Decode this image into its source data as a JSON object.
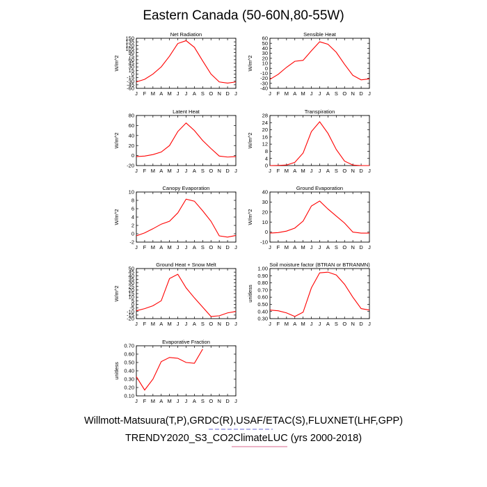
{
  "title": "Eastern Canada (50-60N,80-55W)",
  "footer": {
    "line1": "Willmott-Matsuura(T,P),GRDC(R),USAF/ETAC(S),FLUXNET(LHF,GPP)",
    "line2": "TRENDY2020_S3_CO2ClimateLUC (yrs 2000-2018)"
  },
  "colors": {
    "series": "#ff0000",
    "axis": "#000000",
    "underline_line1": "#3333cc",
    "underline_line2": "#cc3366"
  },
  "chart_data": [
    {
      "type": "line",
      "title": "Net Radiation",
      "ylabel": "W/m^2",
      "x": [
        "J",
        "F",
        "M",
        "A",
        "M",
        "J",
        "J",
        "A",
        "S",
        "O",
        "N",
        "D",
        "J"
      ],
      "ylim": [
        -60,
        150
      ],
      "yticks": [
        -60,
        -45,
        -30,
        -15,
        0,
        15,
        30,
        45,
        60,
        75,
        90,
        105,
        120,
        135,
        150
      ],
      "values": [
        -33,
        -22,
        0,
        30,
        75,
        128,
        140,
        112,
        55,
        0,
        -33,
        -38,
        -33
      ]
    },
    {
      "type": "line",
      "title": "Sensible Heat",
      "ylabel": "W/m^2",
      "x": [
        "J",
        "F",
        "M",
        "A",
        "M",
        "J",
        "J",
        "A",
        "S",
        "O",
        "N",
        "D",
        "J"
      ],
      "ylim": [
        -40,
        60
      ],
      "yticks": [
        -40,
        -30,
        -20,
        -10,
        0,
        10,
        20,
        30,
        40,
        50,
        60
      ],
      "values": [
        -22,
        -12,
        2,
        14,
        16,
        35,
        53,
        48,
        32,
        8,
        -14,
        -23,
        -21
      ]
    },
    {
      "type": "line",
      "title": "Latent Heat",
      "ylabel": "W/m^2",
      "x": [
        "J",
        "F",
        "M",
        "A",
        "M",
        "J",
        "J",
        "A",
        "S",
        "O",
        "N",
        "D",
        "J"
      ],
      "ylim": [
        -20,
        80
      ],
      "yticks": [
        -20,
        0,
        20,
        40,
        60,
        80
      ],
      "values": [
        -2,
        -1,
        2,
        7,
        20,
        48,
        65,
        50,
        30,
        14,
        -1,
        -3,
        -2
      ]
    },
    {
      "type": "line",
      "title": "Transpiration",
      "ylabel": "W/m^2",
      "x": [
        "J",
        "F",
        "M",
        "A",
        "M",
        "J",
        "J",
        "A",
        "S",
        "O",
        "N",
        "D",
        "J"
      ],
      "ylim": [
        0,
        28
      ],
      "yticks": [
        0,
        4,
        8,
        12,
        16,
        20,
        24,
        28
      ],
      "values": [
        0,
        0.1,
        0.3,
        1.8,
        7,
        19,
        24.5,
        18,
        9,
        2.5,
        0.3,
        0,
        0
      ]
    },
    {
      "type": "line",
      "title": "Canopy Evaporation",
      "ylabel": "W/m^2",
      "x": [
        "J",
        "F",
        "M",
        "A",
        "M",
        "J",
        "J",
        "A",
        "S",
        "O",
        "N",
        "D",
        "J"
      ],
      "ylim": [
        -2,
        10
      ],
      "yticks": [
        -2,
        0,
        2,
        4,
        6,
        8,
        10
      ],
      "values": [
        -0.5,
        0.2,
        1.2,
        2.3,
        3.0,
        5.0,
        8.3,
        7.8,
        5.5,
        3.0,
        -0.5,
        -0.8,
        -0.4
      ]
    },
    {
      "type": "line",
      "title": "Ground Evaporation",
      "ylabel": "W/m^2",
      "x": [
        "J",
        "F",
        "M",
        "A",
        "M",
        "J",
        "J",
        "A",
        "S",
        "O",
        "N",
        "D",
        "J"
      ],
      "ylim": [
        -10,
        40
      ],
      "yticks": [
        -10,
        0,
        10,
        20,
        30,
        40
      ],
      "values": [
        -1,
        -0.5,
        1,
        4,
        11,
        26,
        31,
        23,
        16,
        9,
        0,
        -1,
        -1
      ]
    },
    {
      "type": "line",
      "title": "Ground Heat + Snow Melt",
      "ylabel": "W/m^2",
      "x": [
        "J",
        "F",
        "M",
        "A",
        "M",
        "J",
        "J",
        "A",
        "S",
        "O",
        "N",
        "D",
        "J"
      ],
      "ylim": [
        -20,
        50
      ],
      "yticks": [
        -20,
        -15,
        -10,
        -5,
        0,
        5,
        10,
        15,
        20,
        25,
        30,
        35,
        40,
        45,
        50
      ],
      "values": [
        -9,
        -6,
        -2,
        5,
        36,
        42,
        23,
        9,
        -4,
        -17,
        -16,
        -12,
        -10
      ]
    },
    {
      "type": "line",
      "title": "Soil moisture factor (BTRAN or BTRANMN)",
      "ylabel": "unitless",
      "x": [
        "J",
        "F",
        "M",
        "A",
        "M",
        "J",
        "J",
        "A",
        "S",
        "O",
        "N",
        "D",
        "J"
      ],
      "ylim": [
        0.3,
        1.0
      ],
      "yticks": [
        0.3,
        0.4,
        0.5,
        0.6,
        0.7,
        0.8,
        0.9,
        1.0
      ],
      "values": [
        0.42,
        0.41,
        0.38,
        0.33,
        0.39,
        0.73,
        0.94,
        0.95,
        0.91,
        0.78,
        0.6,
        0.44,
        0.42
      ]
    },
    {
      "type": "line",
      "title": "Evaporative Fraction",
      "ylabel": "unitless",
      "x": [
        "J",
        "F",
        "M",
        "A",
        "M",
        "J",
        "J",
        "A",
        "S",
        "O",
        "N",
        "D",
        "J"
      ],
      "ylim": [
        0.1,
        0.7
      ],
      "yticks": [
        0.1,
        0.2,
        0.3,
        0.4,
        0.5,
        0.6,
        0.7
      ],
      "values": [
        0.33,
        0.17,
        0.3,
        0.51,
        0.56,
        0.55,
        0.5,
        0.49,
        0.66,
        null,
        null,
        null,
        null
      ]
    }
  ]
}
